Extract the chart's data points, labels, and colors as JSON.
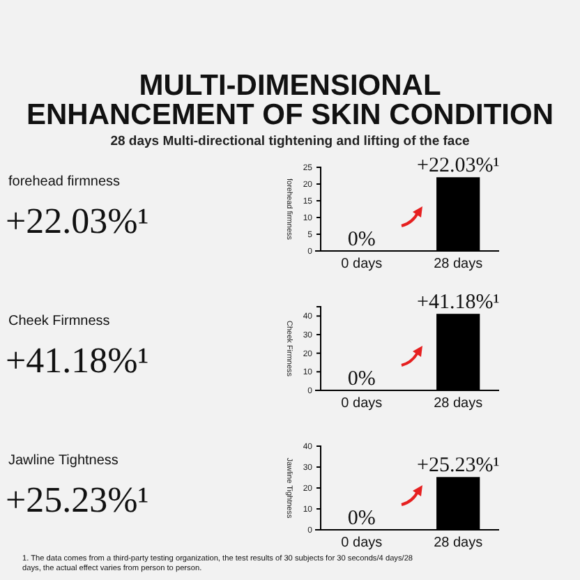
{
  "chart_data": [
    {
      "type": "other",
      "title": "MULTI-DIMENSIONAL ENHANCEMENT OF SKIN CONDITION",
      "subtitle": "28 days Multi-directional tightening and lifting of the face"
    },
    {
      "type": "other",
      "title": "forehead firmness",
      "annotations": [
        "+22.03%¹"
      ]
    },
    {
      "type": "bar",
      "ylabel": "forehead firmness",
      "categories": [
        "0 days",
        "28 days"
      ],
      "values": [
        0,
        22.03
      ],
      "color": "#000000",
      "ylim": [
        0,
        25
      ],
      "yticks": [
        0,
        5,
        10,
        15,
        20,
        25
      ],
      "value_labels": [
        "0%",
        "+22.03%¹"
      ]
    },
    {
      "type": "other",
      "title": "Cheek Firmness",
      "annotations": [
        "+41.18%¹"
      ]
    },
    {
      "type": "bar",
      "ylabel": "Cheek Firmness",
      "categories": [
        "0 days",
        "28 days"
      ],
      "values": [
        0,
        41.18
      ],
      "color": "#000000",
      "ylim": [
        0,
        45
      ],
      "yticks": [
        0,
        10,
        20,
        30,
        40
      ],
      "value_labels": [
        "0%",
        "+41.18%¹"
      ]
    },
    {
      "type": "other",
      "title": "Jawline Tightness",
      "annotations": [
        "+25.23%¹"
      ]
    },
    {
      "type": "bar",
      "ylabel": "Jawline Tightness",
      "categories": [
        "0 days",
        "28 days"
      ],
      "values": [
        0,
        25.23
      ],
      "color": "#000000",
      "ylim": [
        0,
        40
      ],
      "yticks": [
        0,
        10,
        20,
        30,
        40
      ],
      "value_labels": [
        "0%",
        "+25.23%¹"
      ],
      "annotations": [
        "1. The data comes from a third-party testing organization, the test results of 30 subjects for 30 seconds/4 days/28 days, the actual effect varies from person to person."
      ]
    }
  ]
}
